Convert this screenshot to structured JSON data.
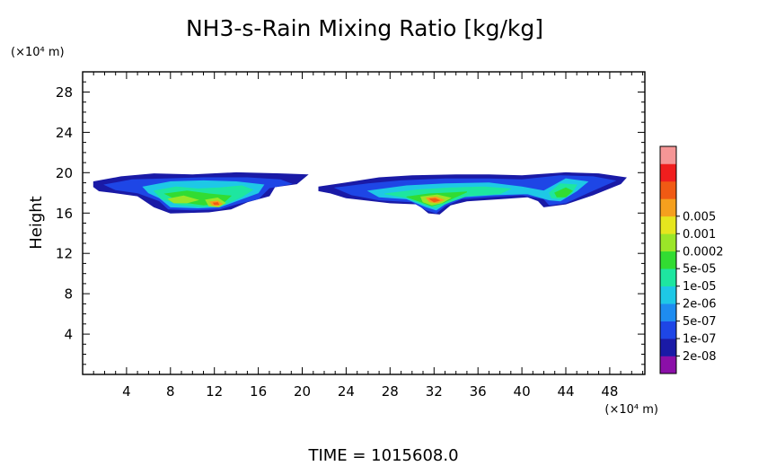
{
  "chart_data": {
    "type": "heatmap",
    "title": "NH3-s-Rain Mixing Ratio [kg/kg]",
    "ylabel": "Height",
    "xunit": "(×10⁴ m)",
    "yunit": "(×10⁴ m)",
    "footer": "TIME = 1015608.0",
    "xlim": [
      0,
      51.2
    ],
    "ylim": [
      0,
      30
    ],
    "xticks": [
      4,
      8,
      12,
      16,
      20,
      24,
      28,
      32,
      36,
      40,
      44,
      48
    ],
    "yticks": [
      4,
      8,
      12,
      16,
      20,
      24,
      28
    ],
    "legend_position": "right",
    "colorbar": {
      "colors": [
        "#8b0fa8",
        "#1a1aa6",
        "#1e46e6",
        "#1e8cf0",
        "#1ec8e6",
        "#1ee6a0",
        "#32dc32",
        "#9be628",
        "#e6e61e",
        "#f5a01e",
        "#f05a14",
        "#f01e1e",
        "#f59696"
      ],
      "labels": [
        "2e-08",
        "1e-07",
        "5e-07",
        "2e-06",
        "1e-05",
        "5e-05",
        "0.0002",
        "0.001",
        "0.005"
      ]
    },
    "regions": [
      {
        "level": 1,
        "points": [
          [
            1.0,
            19.1
          ],
          [
            3.5,
            19.6
          ],
          [
            6.5,
            19.9
          ],
          [
            10.0,
            19.8
          ],
          [
            14.0,
            20.0
          ],
          [
            18.0,
            19.9
          ],
          [
            20.5,
            19.8
          ],
          [
            19.5,
            18.9
          ],
          [
            17.5,
            18.6
          ],
          [
            17.0,
            17.7
          ],
          [
            15.0,
            17.1
          ],
          [
            13.5,
            16.4
          ],
          [
            11.5,
            16.1
          ],
          [
            8.0,
            16.0
          ],
          [
            6.5,
            16.6
          ],
          [
            5.0,
            17.7
          ],
          [
            3.0,
            18.0
          ],
          [
            1.5,
            18.2
          ],
          [
            1.0,
            18.6
          ]
        ]
      },
      {
        "level": 2,
        "points": [
          [
            2.0,
            18.8
          ],
          [
            4.5,
            19.3
          ],
          [
            7.5,
            19.4
          ],
          [
            11.0,
            19.5
          ],
          [
            15.0,
            19.5
          ],
          [
            18.0,
            19.3
          ],
          [
            19.0,
            18.9
          ],
          [
            17.0,
            18.5
          ],
          [
            16.0,
            17.4
          ],
          [
            14.0,
            16.9
          ],
          [
            12.5,
            16.4
          ],
          [
            10.0,
            16.3
          ],
          [
            7.8,
            16.4
          ],
          [
            7.0,
            17.2
          ],
          [
            5.0,
            18.0
          ],
          [
            3.0,
            18.3
          ]
        ]
      },
      {
        "level": 4,
        "points": [
          [
            5.5,
            18.6
          ],
          [
            8.0,
            19.1
          ],
          [
            11.0,
            19.2
          ],
          [
            14.0,
            19.1
          ],
          [
            16.5,
            18.8
          ],
          [
            16.0,
            18.0
          ],
          [
            14.0,
            17.2
          ],
          [
            12.5,
            16.6
          ],
          [
            10.5,
            16.5
          ],
          [
            8.0,
            16.6
          ],
          [
            7.0,
            17.5
          ],
          [
            6.0,
            18.0
          ]
        ]
      },
      {
        "level": 5,
        "points": [
          [
            6.5,
            18.2
          ],
          [
            8.5,
            18.6
          ],
          [
            10.5,
            18.4
          ],
          [
            12.5,
            18.5
          ],
          [
            14.5,
            18.7
          ],
          [
            15.5,
            18.3
          ],
          [
            14.5,
            17.6
          ],
          [
            13.0,
            16.9
          ],
          [
            11.0,
            16.6
          ],
          [
            9.0,
            16.8
          ],
          [
            7.2,
            17.4
          ]
        ]
      },
      {
        "level": 6,
        "points": [
          [
            7.5,
            17.9
          ],
          [
            9.5,
            18.2
          ],
          [
            11.5,
            17.9
          ],
          [
            13.5,
            17.7
          ],
          [
            12.8,
            17.0
          ],
          [
            11.0,
            16.8
          ],
          [
            9.0,
            17.1
          ]
        ]
      },
      {
        "level": 7,
        "points": [
          [
            7.8,
            17.4
          ],
          [
            9.2,
            17.7
          ],
          [
            10.5,
            17.3
          ],
          [
            9.5,
            17.0
          ],
          [
            8.3,
            17.0
          ]
        ]
      },
      {
        "level": 7,
        "points": [
          [
            11.2,
            17.3
          ],
          [
            12.3,
            17.5
          ],
          [
            13.0,
            17.0
          ],
          [
            12.4,
            16.6
          ],
          [
            11.5,
            16.7
          ]
        ]
      },
      {
        "level": 9,
        "points": [
          [
            11.6,
            17.1
          ],
          [
            12.3,
            17.2
          ],
          [
            12.7,
            16.9
          ],
          [
            12.2,
            16.7
          ],
          [
            11.8,
            16.8
          ]
        ]
      },
      {
        "level": 10,
        "points": [
          [
            11.9,
            17.0
          ],
          [
            12.3,
            17.05
          ],
          [
            12.4,
            16.85
          ],
          [
            12.0,
            16.85
          ]
        ]
      },
      {
        "level": 1,
        "points": [
          [
            21.5,
            18.6
          ],
          [
            24.0,
            19.0
          ],
          [
            27.0,
            19.5
          ],
          [
            30.0,
            19.7
          ],
          [
            34.0,
            19.8
          ],
          [
            37.0,
            19.8
          ],
          [
            40.0,
            19.7
          ],
          [
            44.0,
            20.0
          ],
          [
            47.0,
            19.9
          ],
          [
            49.5,
            19.5
          ],
          [
            49.0,
            18.9
          ],
          [
            46.5,
            17.8
          ],
          [
            44.0,
            16.9
          ],
          [
            42.0,
            16.6
          ],
          [
            41.5,
            17.2
          ],
          [
            40.5,
            17.6
          ],
          [
            38.0,
            17.4
          ],
          [
            35.0,
            17.2
          ],
          [
            33.5,
            16.8
          ],
          [
            32.5,
            15.9
          ],
          [
            31.5,
            16.0
          ],
          [
            30.5,
            16.9
          ],
          [
            28.0,
            17.0
          ],
          [
            24.0,
            17.5
          ],
          [
            22.5,
            18.0
          ],
          [
            21.5,
            18.2
          ]
        ]
      },
      {
        "level": 2,
        "points": [
          [
            23.0,
            18.5
          ],
          [
            26.0,
            18.9
          ],
          [
            29.0,
            19.2
          ],
          [
            33.0,
            19.4
          ],
          [
            37.0,
            19.4
          ],
          [
            40.0,
            19.3
          ],
          [
            43.5,
            19.7
          ],
          [
            46.5,
            19.6
          ],
          [
            48.5,
            19.2
          ],
          [
            46.0,
            18.0
          ],
          [
            44.0,
            17.0
          ],
          [
            42.5,
            16.8
          ],
          [
            42.0,
            17.4
          ],
          [
            40.0,
            17.8
          ],
          [
            37.0,
            17.6
          ],
          [
            34.5,
            17.4
          ],
          [
            33.0,
            16.7
          ],
          [
            32.2,
            16.0
          ],
          [
            31.3,
            16.3
          ],
          [
            30.0,
            17.1
          ],
          [
            27.0,
            17.3
          ],
          [
            24.5,
            17.8
          ]
        ]
      },
      {
        "level": 4,
        "points": [
          [
            26.0,
            18.2
          ],
          [
            29.5,
            18.7
          ],
          [
            33.0,
            18.9
          ],
          [
            37.0,
            19.0
          ],
          [
            40.0,
            18.6
          ],
          [
            42.0,
            18.2
          ],
          [
            44.0,
            19.4
          ],
          [
            46.0,
            19.1
          ],
          [
            45.0,
            18.2
          ],
          [
            43.5,
            17.2
          ],
          [
            42.5,
            17.3
          ],
          [
            40.5,
            17.9
          ],
          [
            37.5,
            17.8
          ],
          [
            34.5,
            17.6
          ],
          [
            33.0,
            16.9
          ],
          [
            32.2,
            16.3
          ],
          [
            31.3,
            16.6
          ],
          [
            29.5,
            17.4
          ],
          [
            27.0,
            17.6
          ]
        ]
      },
      {
        "level": 5,
        "points": [
          [
            27.5,
            17.9
          ],
          [
            30.5,
            18.3
          ],
          [
            33.5,
            18.5
          ],
          [
            36.5,
            18.6
          ],
          [
            39.0,
            18.4
          ],
          [
            38.0,
            17.9
          ],
          [
            35.0,
            17.7
          ],
          [
            33.2,
            17.0
          ],
          [
            32.2,
            16.5
          ],
          [
            31.2,
            16.8
          ],
          [
            29.5,
            17.5
          ]
        ]
      },
      {
        "level": 5,
        "points": [
          [
            42.5,
            18.0
          ],
          [
            43.5,
            18.9
          ],
          [
            45.0,
            18.8
          ],
          [
            44.5,
            17.9
          ],
          [
            43.5,
            17.4
          ],
          [
            42.7,
            17.5
          ]
        ]
      },
      {
        "level": 6,
        "points": [
          [
            29.5,
            17.6
          ],
          [
            31.5,
            17.9
          ],
          [
            33.5,
            18.0
          ],
          [
            35.0,
            18.1
          ],
          [
            34.0,
            17.6
          ],
          [
            32.8,
            17.0
          ],
          [
            31.8,
            16.7
          ],
          [
            30.8,
            17.1
          ]
        ]
      },
      {
        "level": 6,
        "points": [
          [
            43.0,
            18.0
          ],
          [
            44.0,
            18.5
          ],
          [
            44.6,
            18.2
          ],
          [
            44.0,
            17.6
          ],
          [
            43.2,
            17.6
          ]
        ]
      },
      {
        "level": 7,
        "points": [
          [
            30.8,
            17.6
          ],
          [
            32.3,
            17.8
          ],
          [
            33.5,
            17.5
          ],
          [
            32.7,
            17.0
          ],
          [
            31.8,
            16.8
          ],
          [
            31.0,
            17.1
          ]
        ]
      },
      {
        "level": 9,
        "points": [
          [
            31.3,
            17.5
          ],
          [
            32.2,
            17.6
          ],
          [
            32.9,
            17.3
          ],
          [
            32.3,
            17.0
          ],
          [
            31.6,
            17.1
          ]
        ]
      },
      {
        "level": 10,
        "points": [
          [
            31.6,
            17.4
          ],
          [
            32.1,
            17.45
          ],
          [
            32.5,
            17.25
          ],
          [
            32.0,
            17.1
          ]
        ]
      }
    ]
  }
}
